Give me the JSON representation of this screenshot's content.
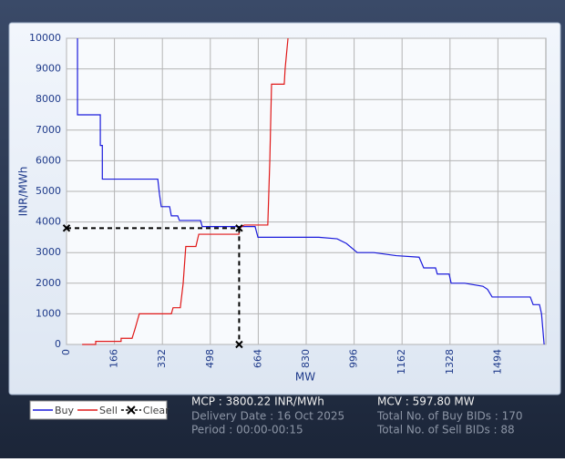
{
  "chart_data": {
    "type": "line",
    "x_label": "MW",
    "y_label": "INR/MWh",
    "xlim": [
      0,
      1660
    ],
    "xticks": [
      0,
      166,
      332,
      498,
      664,
      830,
      996,
      1162,
      1328,
      1494
    ],
    "ylim": [
      0,
      10000
    ],
    "yticks": [
      0,
      1000,
      2000,
      3000,
      4000,
      5000,
      6000,
      7000,
      8000,
      9000,
      10000
    ],
    "grid": true,
    "series": [
      {
        "name": "Buy",
        "color": "#1a1adc",
        "x": [
          38,
          38,
          117,
          117,
          124,
          124,
          133,
          133,
          316,
          322,
          328,
          357,
          363,
          385,
          391,
          464,
          470,
          653,
          663,
          874,
          937,
          969,
          1007,
          1064,
          1142,
          1221,
          1237,
          1278,
          1284,
          1325,
          1332,
          1379,
          1442,
          1458,
          1474,
          1606,
          1616,
          1638,
          1645,
          1654
        ],
        "values": [
          10000,
          7500,
          7500,
          6500,
          6500,
          5400,
          5400,
          5400,
          5400,
          4900,
          4500,
          4500,
          4200,
          4200,
          4050,
          4050,
          3850,
          3850,
          3500,
          3500,
          3450,
          3300,
          3000,
          3000,
          2900,
          2850,
          2500,
          2500,
          2300,
          2300,
          2000,
          2000,
          1900,
          1800,
          1550,
          1550,
          1300,
          1300,
          1000,
          0
        ]
      },
      {
        "name": "Sell",
        "color": "#e01818",
        "x": [
          54,
          101,
          101,
          189,
          189,
          227,
          237,
          243,
          252,
          363,
          369,
          394,
          404,
          413,
          448,
          458,
          597,
          600,
          615,
          697,
          704,
          710,
          754,
          757,
          767
        ],
        "values": [
          0,
          0,
          100,
          100,
          200,
          200,
          500,
          700,
          1000,
          1000,
          1200,
          1200,
          2000,
          3200,
          3200,
          3600,
          3600,
          3800,
          3900,
          3900,
          6000,
          8500,
          8500,
          9000,
          10000
        ]
      }
    ],
    "clear": {
      "name": "Clear",
      "color": "#000000",
      "x": 597.8,
      "y": 3800.22
    }
  },
  "info": {
    "mcp": "MCP : 3800.22 INR/MWh",
    "delivery": "Delivery Date : 16 Oct 2025",
    "period": "Period :  00:00-00:15",
    "mcv": "MCV : 597.80 MW",
    "buy_bids": "Total No. of Buy BIDs : 170",
    "sell_bids": "Total No. of Sell BIDs : 88"
  }
}
